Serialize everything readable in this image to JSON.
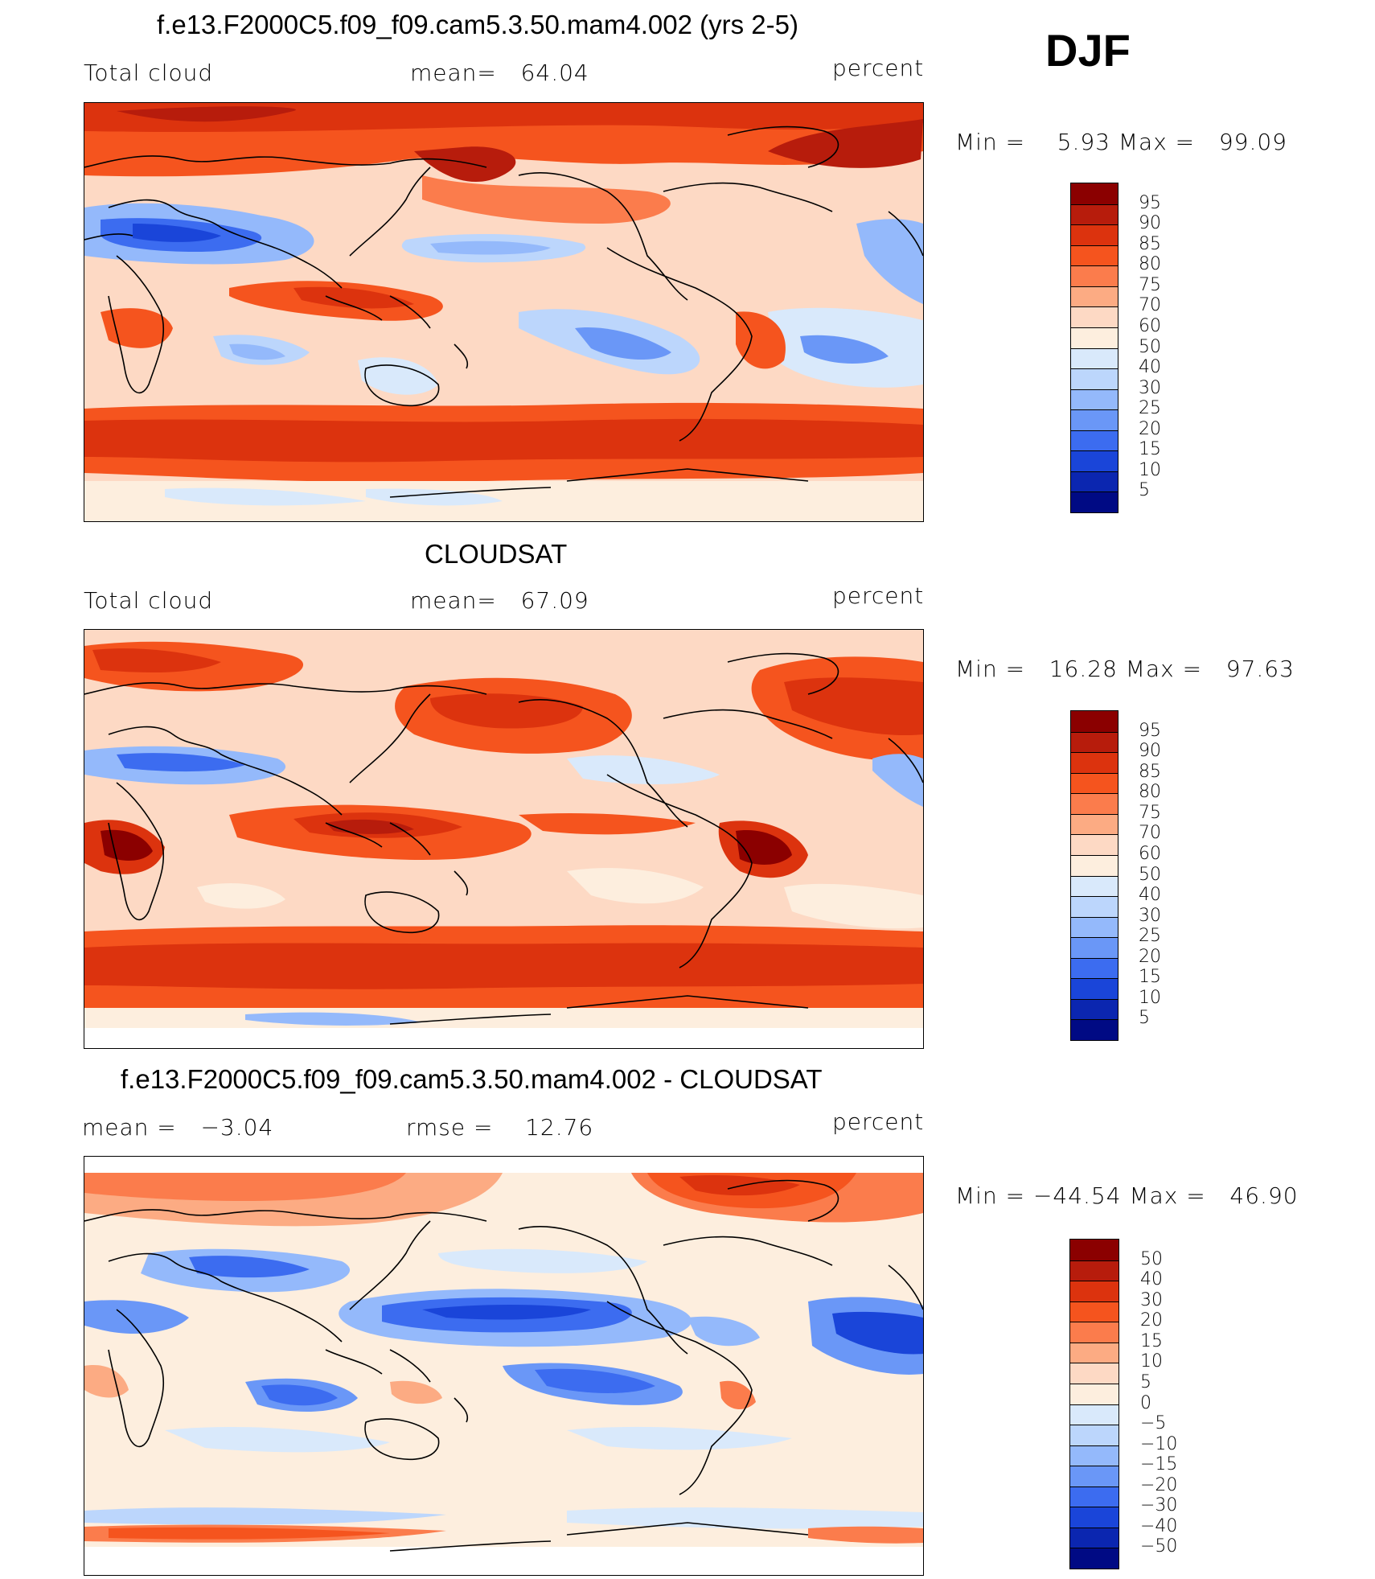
{
  "season": "DJF",
  "panels": [
    {
      "id": "model",
      "title": "f.e13.F2000C5.f09_f09.cam5.3.50.mam4.002 (yrs 2-5)",
      "left_label": "Total cloud",
      "center_label": "mean=   64.04",
      "units": "percent",
      "minmax": "Min =    5.93 Max =   99.09",
      "colorbar": {
        "colors": [
          "#8b0000",
          "#b71c0c",
          "#dc330e",
          "#f5541e",
          "#fb7c4c",
          "#fcab83",
          "#fdd9c4",
          "#fdeede",
          "#d9e9fb",
          "#bcd6fc",
          "#94b9fb",
          "#6a97f7",
          "#3c6cf0",
          "#1a45d9",
          "#0b26b0",
          "#000a84"
        ],
        "labels": [
          "95",
          "90",
          "85",
          "80",
          "75",
          "70",
          "60",
          "50",
          "40",
          "30",
          "25",
          "20",
          "15",
          "10",
          "5"
        ]
      }
    },
    {
      "id": "obs",
      "title": "CLOUDSAT",
      "left_label": "Total cloud",
      "center_label": "mean=   67.09",
      "units": "percent",
      "minmax": "Min =   16.28 Max =   97.63",
      "colorbar": {
        "colors": [
          "#8b0000",
          "#b71c0c",
          "#dc330e",
          "#f5541e",
          "#fb7c4c",
          "#fcab83",
          "#fdd9c4",
          "#fdeede",
          "#d9e9fb",
          "#bcd6fc",
          "#94b9fb",
          "#6a97f7",
          "#3c6cf0",
          "#1a45d9",
          "#0b26b0",
          "#000a84"
        ],
        "labels": [
          "95",
          "90",
          "85",
          "80",
          "75",
          "70",
          "60",
          "50",
          "40",
          "30",
          "25",
          "20",
          "15",
          "10",
          "5"
        ]
      }
    },
    {
      "id": "diff",
      "title": "f.e13.F2000C5.f09_f09.cam5.3.50.mam4.002 - CLOUDSAT",
      "left_label": "mean =   −3.04",
      "center_label": "rmse =    12.76",
      "units": "percent",
      "minmax": "Min = −44.54 Max =   46.90",
      "colorbar": {
        "colors": [
          "#8b0000",
          "#b71c0c",
          "#dc330e",
          "#f5541e",
          "#fb7c4c",
          "#fcab83",
          "#fdd9c4",
          "#fdeede",
          "#d9e9fb",
          "#bcd6fc",
          "#94b9fb",
          "#6a97f7",
          "#3c6cf0",
          "#1a45d9",
          "#0b26b0",
          "#000a84"
        ],
        "labels": [
          "50",
          "40",
          "30",
          "20",
          "15",
          "10",
          "5",
          "0",
          "−5",
          "−10",
          "−15",
          "−20",
          "−30",
          "−40",
          "−50"
        ]
      }
    }
  ]
}
